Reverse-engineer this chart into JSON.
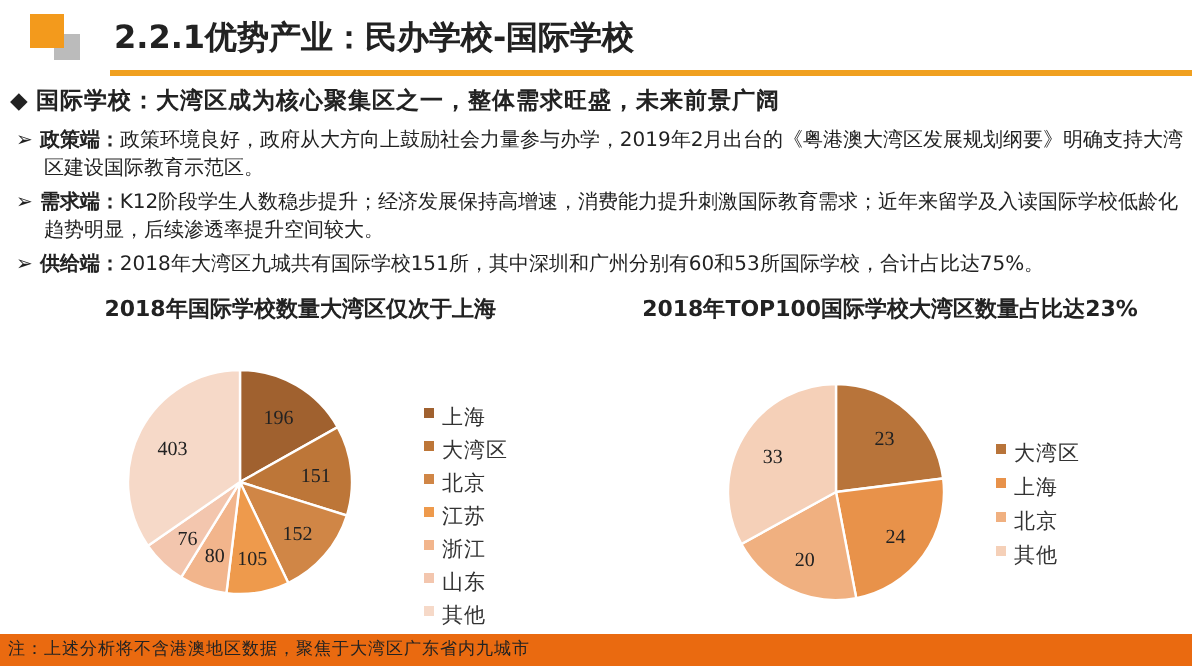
{
  "chart_data": [
    {
      "type": "pie",
      "title": "2018年国际学校数量大湾区仅次于上海",
      "annotations": [
        "2.2.1优势产业：民办学校-国际学校",
        "◆ 国际学校：大湾区成为核心聚集区之一，整体需求旺盛，未来前景广阔",
        "➢ 政策端：政策环境良好，政府从大方向上鼓励社会力量参与办学，2019年2月出台的《粤港澳大湾区发展规划纲要》明确支持大湾区建设国际教育示范区。",
        "➢ 需求端：K12阶段学生人数稳步提升；经济发展保持高增速，消费能力提升刺激国际教育需求；近年来留学及入读国际学校低龄化趋势明显，后续渗透率提升空间较大。",
        "➢ 供给端：2018年大湾区九城共有国际学校151所，其中深圳和广州分别有60和53所国际学校，合计占比达75%。",
        "注：上述分析将不含港澳地区数据，聚焦于大湾区广东省内九城市"
      ],
      "categories": [
        "上海",
        "大湾区",
        "北京",
        "江苏",
        "浙江",
        "山东",
        "其他"
      ],
      "values": [
        196,
        151,
        152,
        105,
        80,
        76,
        403
      ],
      "colors": [
        "#a0612f",
        "#bd7638",
        "#d08646",
        "#ee9a4c",
        "#f2b58c",
        "#f3c6ae",
        "#f6d9c8"
      ],
      "data_labels": true,
      "legend": "right"
    },
    {
      "type": "pie",
      "title": "2018年TOP100国际学校大湾区数量占比达23%",
      "categories": [
        "大湾区",
        "上海",
        "北京",
        "其他"
      ],
      "values": [
        23,
        24,
        20,
        33
      ],
      "colors": [
        "#b8743a",
        "#e8924a",
        "#f0b080",
        "#f5d0b8"
      ],
      "data_labels": true,
      "legend": "right"
    }
  ]
}
